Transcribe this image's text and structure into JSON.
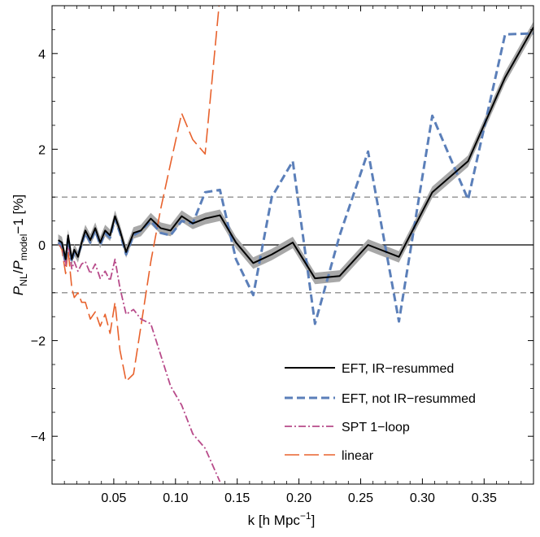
{
  "chart_data": {
    "type": "line",
    "title": "",
    "xlabel": {
      "main": "k [h Mpc",
      "sup": "−1",
      "tail": "]"
    },
    "ylabel": {
      "p1": "P",
      "s1": "NL",
      "mid": "/",
      "p2": "P",
      "s2": "model",
      "tail": "−1 [%]"
    },
    "xlim": [
      0.0,
      0.39
    ],
    "ylim": [
      -5.0,
      5.0
    ],
    "xticks": [
      0.05,
      0.1,
      0.15,
      0.2,
      0.25,
      0.3,
      0.35
    ],
    "xtick_labels": [
      "0.05",
      "0.10",
      "0.15",
      "0.20",
      "0.25",
      "0.30",
      "0.35"
    ],
    "yticks": [
      -4,
      -2,
      0,
      2,
      4
    ],
    "ytick_labels": [
      "−4",
      "−2",
      "0",
      "2",
      "4"
    ],
    "reference_lines": [
      {
        "y": 0,
        "style": "solid",
        "color": "#000000"
      },
      {
        "y": 1,
        "style": "dashed",
        "color": "#999999"
      },
      {
        "y": -1,
        "style": "dashed",
        "color": "#999999"
      }
    ],
    "legend_position": "bottom-right",
    "series": [
      {
        "name": "EFT, IR−resummed",
        "color": "#000000",
        "dash": "none",
        "width": 2,
        "band": 0.12,
        "band_color": "#a8a8a8",
        "x": [
          0.005,
          0.008,
          0.011,
          0.013,
          0.016,
          0.018,
          0.021,
          0.024,
          0.027,
          0.031,
          0.035,
          0.039,
          0.043,
          0.047,
          0.051,
          0.055,
          0.06,
          0.066,
          0.072,
          0.08,
          0.088,
          0.096,
          0.105,
          0.114,
          0.124,
          0.136,
          0.149,
          0.163,
          0.178,
          0.195,
          0.213,
          0.233,
          0.256,
          0.281,
          0.308,
          0.337,
          0.367,
          0.39
        ],
        "y": [
          0.1,
          0.05,
          -0.3,
          0.2,
          -0.3,
          -0.1,
          -0.25,
          0.05,
          0.3,
          0.1,
          0.35,
          0.05,
          0.3,
          0.2,
          0.6,
          0.3,
          -0.15,
          0.25,
          0.3,
          0.55,
          0.35,
          0.3,
          0.6,
          0.45,
          0.55,
          0.62,
          0.05,
          -0.38,
          -0.2,
          0.05,
          -0.7,
          -0.65,
          0.0,
          -0.25,
          1.1,
          1.75,
          3.5,
          4.55
        ]
      },
      {
        "name": "EFT, not IR−resummed",
        "color": "#5b7fb9",
        "dash": "10,5",
        "width": 3,
        "x": [
          0.005,
          0.008,
          0.011,
          0.013,
          0.016,
          0.018,
          0.021,
          0.024,
          0.027,
          0.031,
          0.035,
          0.039,
          0.043,
          0.047,
          0.051,
          0.055,
          0.06,
          0.066,
          0.072,
          0.08,
          0.088,
          0.096,
          0.105,
          0.114,
          0.124,
          0.136,
          0.149,
          0.163,
          0.178,
          0.195,
          0.213,
          0.233,
          0.256,
          0.281,
          0.308,
          0.337,
          0.367,
          0.39
        ],
        "y": [
          0.05,
          0.0,
          -0.35,
          0.15,
          -0.35,
          -0.15,
          -0.2,
          0.0,
          0.25,
          0.05,
          0.3,
          0.0,
          0.25,
          0.15,
          0.55,
          0.25,
          -0.2,
          0.2,
          0.3,
          0.5,
          0.25,
          0.2,
          0.5,
          0.45,
          1.1,
          1.15,
          -0.3,
          -1.05,
          1.0,
          1.75,
          -1.65,
          0.2,
          1.95,
          -1.6,
          2.7,
          0.95,
          4.4,
          4.42
        ]
      },
      {
        "name": "SPT 1−loop",
        "color": "#b84b8a",
        "dash": "9,3,2,3",
        "width": 1.8,
        "x": [
          0.005,
          0.008,
          0.011,
          0.013,
          0.016,
          0.018,
          0.021,
          0.024,
          0.027,
          0.031,
          0.035,
          0.039,
          0.043,
          0.047,
          0.051,
          0.055,
          0.06,
          0.066,
          0.072,
          0.08,
          0.088,
          0.096,
          0.105,
          0.114,
          0.124,
          0.136
        ],
        "y": [
          0.05,
          -0.05,
          -0.45,
          0.05,
          -0.5,
          -0.35,
          -0.55,
          -0.4,
          -0.35,
          -0.6,
          -0.4,
          -0.7,
          -0.55,
          -0.75,
          -0.3,
          -0.9,
          -1.45,
          -1.35,
          -1.55,
          -1.65,
          -2.3,
          -2.95,
          -3.35,
          -3.95,
          -4.25,
          -4.95
        ]
      },
      {
        "name": "linear",
        "color": "#e8622d",
        "dash": "18,6",
        "width": 1.6,
        "x": [
          0.005,
          0.008,
          0.011,
          0.013,
          0.016,
          0.018,
          0.021,
          0.024,
          0.027,
          0.031,
          0.035,
          0.039,
          0.043,
          0.047,
          0.051,
          0.055,
          0.06,
          0.066,
          0.072,
          0.08,
          0.088,
          0.096,
          0.105,
          0.114,
          0.124,
          0.136
        ],
        "y": [
          0.05,
          -0.1,
          -0.6,
          -0.1,
          -0.9,
          -1.1,
          -1.0,
          -1.2,
          -1.2,
          -1.55,
          -1.4,
          -1.7,
          -1.45,
          -1.85,
          -1.2,
          -2.2,
          -2.85,
          -2.7,
          -1.7,
          -0.35,
          0.75,
          1.7,
          2.75,
          2.2,
          1.9,
          5.2
        ]
      }
    ]
  }
}
